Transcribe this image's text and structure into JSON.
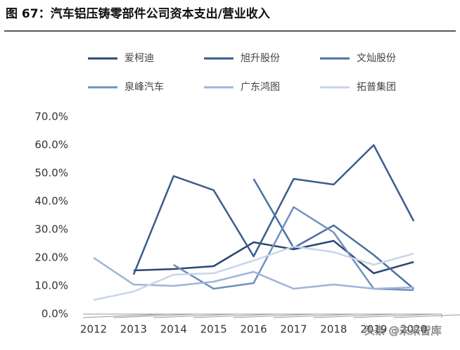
{
  "chart_data": {
    "type": "line",
    "title": "图 67：汽车铝压铸零部件公司资本支出/营业收入",
    "categories": [
      "2012",
      "2013",
      "2014",
      "2015",
      "2016",
      "2017",
      "2018",
      "2019",
      "2020"
    ],
    "series": [
      {
        "name": "爱柯迪",
        "color": "#2b4775",
        "values": [
          null,
          15.5,
          16,
          17,
          25.5,
          23,
          26,
          14.5,
          18.5
        ]
      },
      {
        "name": "旭升股份",
        "color": "#3b5b8e",
        "values": [
          null,
          14,
          49,
          44,
          20.5,
          48,
          46,
          60,
          33
        ]
      },
      {
        "name": "文灿股份",
        "color": "#4d70a6",
        "values": [
          null,
          null,
          null,
          null,
          48,
          23.5,
          31.5,
          21,
          9
        ]
      },
      {
        "name": "泉峰汽车",
        "color": "#718fc0",
        "values": [
          null,
          null,
          17.5,
          9,
          11,
          38,
          29,
          9,
          8.5
        ]
      },
      {
        "name": "广东鸿图",
        "color": "#9fb4d9",
        "values": [
          20,
          10.5,
          10,
          11.5,
          15,
          9,
          10.5,
          9,
          9.5
        ]
      },
      {
        "name": "拓普集团",
        "color": "#c9d5ea",
        "values": [
          5,
          8,
          14,
          14.5,
          19,
          24,
          22,
          17.5,
          21.5
        ]
      }
    ],
    "ylim": [
      0,
      70
    ],
    "yticks": [
      {
        "value": 0,
        "label": "0.0%"
      },
      {
        "value": 10,
        "label": "10.0%"
      },
      {
        "value": 20,
        "label": "20.0%"
      },
      {
        "value": 30,
        "label": "30.0%"
      },
      {
        "value": 40,
        "label": "40.0%"
      },
      {
        "value": 50,
        "label": "50.0%"
      },
      {
        "value": 60,
        "label": "60.0%"
      },
      {
        "value": 70,
        "label": "70.0%"
      }
    ],
    "grid": false,
    "legend": "top",
    "watermark": "头条 @未来智库"
  }
}
